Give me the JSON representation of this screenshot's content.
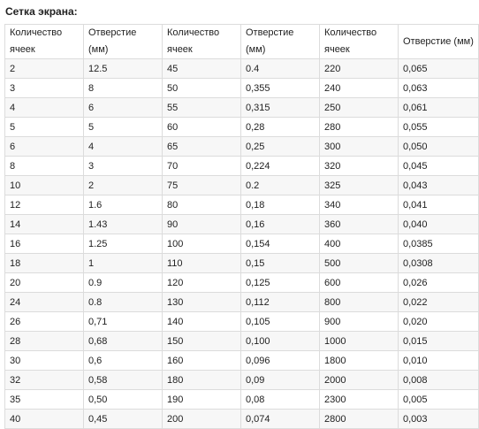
{
  "heading": "Сетка экрана:",
  "table": {
    "headers": [
      "Количество ячеек",
      "Отверстие (мм)",
      "Количество ячеек",
      "Отверстие (мм)",
      "Количество ячеек",
      "Отверстие (мм)"
    ],
    "rows": [
      [
        "2",
        "12.5",
        "45",
        "0.4",
        "220",
        "0,065"
      ],
      [
        "3",
        "8",
        "50",
        "0,355",
        "240",
        "0,063"
      ],
      [
        "4",
        "6",
        "55",
        "0,315",
        "250",
        "0,061"
      ],
      [
        "5",
        "5",
        "60",
        "0,28",
        "280",
        "0,055"
      ],
      [
        "6",
        "4",
        "65",
        "0,25",
        "300",
        "0,050"
      ],
      [
        "8",
        "3",
        "70",
        "0,224",
        "320",
        "0,045"
      ],
      [
        "10",
        "2",
        "75",
        "0.2",
        "325",
        "0,043"
      ],
      [
        "12",
        "1.6",
        "80",
        "0,18",
        "340",
        "0,041"
      ],
      [
        "14",
        "1.43",
        "90",
        "0,16",
        "360",
        "0,040"
      ],
      [
        "16",
        "1.25",
        "100",
        "0,154",
        "400",
        "0,0385"
      ],
      [
        "18",
        "1",
        "110",
        "0,15",
        "500",
        "0,0308"
      ],
      [
        "20",
        "0.9",
        "120",
        "0,125",
        "600",
        "0,026"
      ],
      [
        "24",
        "0.8",
        "130",
        "0,112",
        "800",
        "0,022"
      ],
      [
        "26",
        "0,71",
        "140",
        "0,105",
        "900",
        "0,020"
      ],
      [
        "28",
        "0,68",
        "150",
        "0,100",
        "1000",
        "0,015"
      ],
      [
        "30",
        "0,6",
        "160",
        "0,096",
        "1800",
        "0,010"
      ],
      [
        "32",
        "0,58",
        "180",
        "0,09",
        "2000",
        "0,008"
      ],
      [
        "35",
        "0,50",
        "190",
        "0,08",
        "2300",
        "0,005"
      ],
      [
        "40",
        "0,45",
        "200",
        "0,074",
        "2800",
        "0,003"
      ]
    ]
  }
}
